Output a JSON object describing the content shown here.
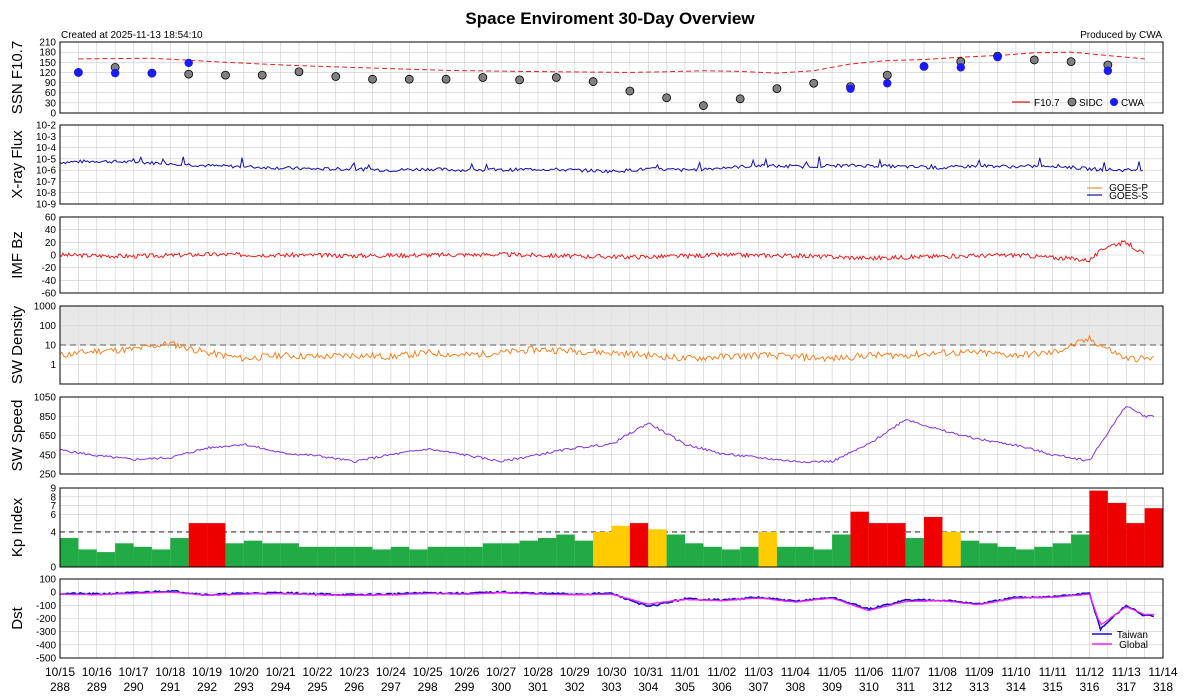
{
  "title": "Space Enviroment 30-Day Overview",
  "created_label": "Created at 2025-11-13 18:54:10",
  "produced_label": "Produced by CWA",
  "x_axis": {
    "dates": [
      "10/15",
      "10/16",
      "10/17",
      "10/18",
      "10/19",
      "10/20",
      "10/21",
      "10/22",
      "10/23",
      "10/24",
      "10/25",
      "10/26",
      "10/27",
      "10/28",
      "10/29",
      "10/30",
      "10/31",
      "11/01",
      "11/02",
      "11/03",
      "11/04",
      "11/05",
      "11/06",
      "11/07",
      "11/08",
      "11/09",
      "11/10",
      "11/11",
      "11/12",
      "11/13",
      "11/14"
    ],
    "doys": [
      "288",
      "289",
      "290",
      "291",
      "292",
      "293",
      "294",
      "295",
      "296",
      "297",
      "298",
      "299",
      "300",
      "301",
      "302",
      "303",
      "304",
      "305",
      "306",
      "307",
      "308",
      "309",
      "310",
      "311",
      "312",
      "313",
      "314",
      "315",
      "316",
      "317",
      "318"
    ]
  },
  "colors": {
    "f107": "#e52222",
    "sidc": "#808080",
    "cwa": "#1a1aff",
    "goes_p": "#d99a33",
    "goes_s": "#1111aa",
    "imf": "#ee1111",
    "density": "#ff7711",
    "speed": "#8833dd",
    "kp_low": "#22aa44",
    "kp_mid": "#ffcc00",
    "kp_high": "#ee0000",
    "dst_taiwan": "#1111cc",
    "dst_global": "#ff22ff",
    "grid": "#cccccc"
  },
  "chart_data": [
    {
      "type": "scatter",
      "id": "ssn",
      "ylabel": "SSN  F10.7",
      "ylim": [
        0,
        210
      ],
      "yticks": [
        "0",
        "30",
        "60",
        "90",
        "120",
        "150",
        "180",
        "210"
      ],
      "legend": [
        "F10.7",
        "SIDC",
        "CWA"
      ],
      "legend_position": "bottom-right",
      "f107": {
        "x": [
          0,
          2,
          4,
          6,
          8,
          10,
          12,
          14,
          15,
          16,
          17,
          18,
          19,
          20,
          21,
          22,
          23,
          24,
          25,
          26,
          27,
          28,
          29
        ],
        "y": [
          160,
          162,
          150,
          140,
          133,
          126,
          123,
          121,
          120,
          122,
          125,
          123,
          118,
          125,
          145,
          155,
          158,
          165,
          170,
          178,
          180,
          170,
          160
        ]
      },
      "sidc": {
        "x": [
          0,
          1,
          2,
          3,
          4,
          5,
          6,
          7,
          8,
          9,
          10,
          11,
          12,
          13,
          14,
          15,
          16,
          17,
          18,
          19,
          20,
          21,
          22,
          23,
          24,
          25,
          26,
          27,
          28
        ],
        "y": [
          120,
          135,
          118,
          115,
          112,
          112,
          122,
          108,
          100,
          100,
          100,
          105,
          98,
          105,
          93,
          65,
          45,
          22,
          42,
          72,
          88,
          78,
          112,
          138,
          152,
          168,
          157,
          152,
          142
        ]
      },
      "cwa": {
        "x": [
          0,
          1,
          2,
          3,
          21,
          22,
          23,
          24,
          25,
          28
        ],
        "y": [
          120,
          118,
          118,
          148,
          72,
          88,
          138,
          135,
          165,
          125
        ]
      }
    },
    {
      "type": "line",
      "id": "xray",
      "ylabel": "X-ray Flux",
      "log_range": [
        -9,
        -2
      ],
      "yticks": [
        "10-9",
        "10-8",
        "10-7",
        "10-6",
        "10-5",
        "10-4",
        "10-3",
        "10-2"
      ],
      "legend": [
        "GOES-P",
        "GOES-S"
      ],
      "legend_position": "bottom-right",
      "series": [
        {
          "name": "GOES-S",
          "x": [
            0,
            1,
            2,
            3,
            4,
            5,
            6,
            7,
            8,
            9,
            10,
            11,
            12,
            13,
            14,
            15,
            16,
            17,
            18,
            19,
            20,
            21,
            22,
            23,
            24,
            25,
            26,
            27,
            28,
            29
          ],
          "y": [
            -5.3,
            -5.2,
            -5.3,
            -5.4,
            -5.6,
            -5.7,
            -5.8,
            -5.9,
            -5.9,
            -6.0,
            -5.9,
            -6.0,
            -6.0,
            -5.9,
            -6.0,
            -6.1,
            -5.9,
            -6.0,
            -5.8,
            -5.6,
            -5.7,
            -5.6,
            -5.6,
            -5.7,
            -5.8,
            -5.6,
            -5.7,
            -5.6,
            -5.9,
            -6.0
          ]
        }
      ]
    },
    {
      "type": "line",
      "id": "imf",
      "ylabel": "IMF Bz",
      "ylim": [
        -60,
        60
      ],
      "yticks": [
        "-60",
        "-40",
        "-20",
        "0",
        "20",
        "40",
        "60"
      ],
      "series": [
        {
          "name": "Bz",
          "x": [
            0,
            2,
            4,
            6,
            8,
            10,
            12,
            14,
            16,
            18,
            20,
            22,
            24,
            26,
            28,
            28.5,
            29,
            29.5
          ],
          "y": [
            0,
            -2,
            1,
            0,
            -1,
            0,
            1,
            -2,
            -3,
            0,
            -1,
            -5,
            -2,
            0,
            -8,
            15,
            20,
            0
          ]
        }
      ]
    },
    {
      "type": "line",
      "id": "density",
      "ylabel": "SW Density",
      "log_range": [
        -1,
        3
      ],
      "yticks": [
        "1",
        "10",
        "100",
        "1000"
      ],
      "series": [
        {
          "name": "Density",
          "x": [
            0,
            1,
            2,
            3,
            4,
            5,
            6,
            7,
            8,
            9,
            10,
            11,
            12,
            13,
            14,
            15,
            16,
            17,
            18,
            19,
            20,
            21,
            22,
            23,
            24,
            25,
            26,
            27,
            28,
            29
          ],
          "y": [
            3,
            5,
            6,
            12,
            4,
            2,
            3,
            2.5,
            3,
            2.5,
            4,
            3,
            4,
            6,
            5,
            4,
            3,
            2,
            2.5,
            3,
            2.5,
            2,
            3,
            3,
            4,
            4,
            3,
            4,
            20,
            2
          ]
        }
      ]
    },
    {
      "type": "line",
      "id": "speed",
      "ylabel": "SW Speed",
      "ylim": [
        250,
        1050
      ],
      "yticks": [
        "250",
        "450",
        "650",
        "850",
        "1050"
      ],
      "series": [
        {
          "name": "Speed",
          "x": [
            0,
            1,
            2,
            3,
            4,
            5,
            6,
            7,
            8,
            9,
            10,
            11,
            12,
            13,
            14,
            15,
            16,
            17,
            18,
            19,
            20,
            21,
            22,
            23,
            24,
            25,
            26,
            27,
            28,
            28.5,
            29,
            29.5
          ],
          "y": [
            500,
            440,
            400,
            420,
            520,
            560,
            470,
            440,
            380,
            450,
            510,
            450,
            380,
            450,
            520,
            560,
            780,
            560,
            460,
            420,
            380,
            380,
            560,
            820,
            700,
            610,
            550,
            450,
            390,
            680,
            960,
            850
          ]
        }
      ]
    },
    {
      "type": "bar",
      "id": "kp",
      "ylabel": "Kp Index",
      "ylim": [
        0,
        9
      ],
      "yticks": [
        "0",
        "4",
        "6",
        "7",
        "8",
        "9"
      ],
      "x": [
        0,
        0.5,
        1,
        1.5,
        2,
        2.5,
        3,
        3.5,
        4,
        4.5,
        5,
        5.5,
        6,
        6.5,
        7,
        7.5,
        8,
        8.5,
        9,
        9.5,
        10,
        10.5,
        11,
        11.5,
        12,
        12.5,
        13,
        13.5,
        14,
        14.5,
        15,
        15.5,
        16,
        16.5,
        17,
        17.5,
        18,
        18.5,
        19,
        19.5,
        20,
        20.5,
        21,
        21.5,
        22,
        22.5,
        23,
        23.5,
        24,
        24.5,
        25,
        25.5,
        26,
        26.5,
        27,
        27.5,
        28,
        28.5,
        29,
        29.5
      ],
      "values": [
        3.3,
        2,
        1.7,
        2.7,
        2.3,
        2,
        3.3,
        5,
        5,
        2.7,
        3,
        2.7,
        2.7,
        2.3,
        2.3,
        2.3,
        2.3,
        2,
        2.3,
        2,
        2.3,
        2.3,
        2.3,
        2.7,
        2.7,
        3,
        3.3,
        3.7,
        3,
        4,
        4.7,
        5,
        4.3,
        3.7,
        2.7,
        2.3,
        2,
        2.3,
        4,
        2.3,
        2.3,
        2,
        3.7,
        6.3,
        5,
        5,
        3.3,
        5.7,
        4,
        3,
        2.7,
        2.3,
        2,
        2.3,
        2.7,
        3.7,
        8.7,
        7.3,
        5,
        6.7
      ]
    },
    {
      "type": "line",
      "id": "dst",
      "ylabel": "Dst",
      "ylim": [
        -500,
        100
      ],
      "yticks": [
        "-500",
        "-400",
        "-300",
        "-200",
        "-100",
        "0",
        "100"
      ],
      "legend": [
        "Taiwan",
        "Global"
      ],
      "legend_position": "bottom-right",
      "series": [
        {
          "name": "Taiwan",
          "x": [
            0,
            1,
            2,
            3,
            4,
            5,
            6,
            7,
            8,
            9,
            10,
            11,
            12,
            13,
            14,
            15,
            16,
            17,
            18,
            19,
            20,
            21,
            22,
            23,
            24,
            25,
            26,
            27,
            28,
            28.3,
            28.6,
            29,
            29.5
          ],
          "y": [
            -10,
            -15,
            -5,
            10,
            -20,
            -10,
            -5,
            -15,
            -20,
            -15,
            -5,
            -10,
            0,
            -10,
            -15,
            -10,
            -110,
            -50,
            -60,
            -40,
            -70,
            -40,
            -130,
            -60,
            -60,
            -90,
            -40,
            -35,
            -10,
            -280,
            -200,
            -100,
            -180
          ]
        },
        {
          "name": "Global",
          "x": [
            0,
            1,
            2,
            3,
            4,
            5,
            6,
            7,
            8,
            9,
            10,
            11,
            12,
            13,
            14,
            15,
            16,
            17,
            18,
            19,
            20,
            21,
            22,
            23,
            24,
            25,
            26,
            27,
            28,
            28.3,
            28.6,
            29,
            29.5
          ],
          "y": [
            -15,
            -20,
            -10,
            0,
            -25,
            -15,
            -10,
            -20,
            -25,
            -20,
            -10,
            -15,
            -5,
            -15,
            -20,
            -15,
            -90,
            -55,
            -65,
            -45,
            -75,
            -45,
            -140,
            -70,
            -65,
            -95,
            -45,
            -40,
            -15,
            -250,
            -190,
            -110,
            -170
          ]
        }
      ]
    }
  ]
}
